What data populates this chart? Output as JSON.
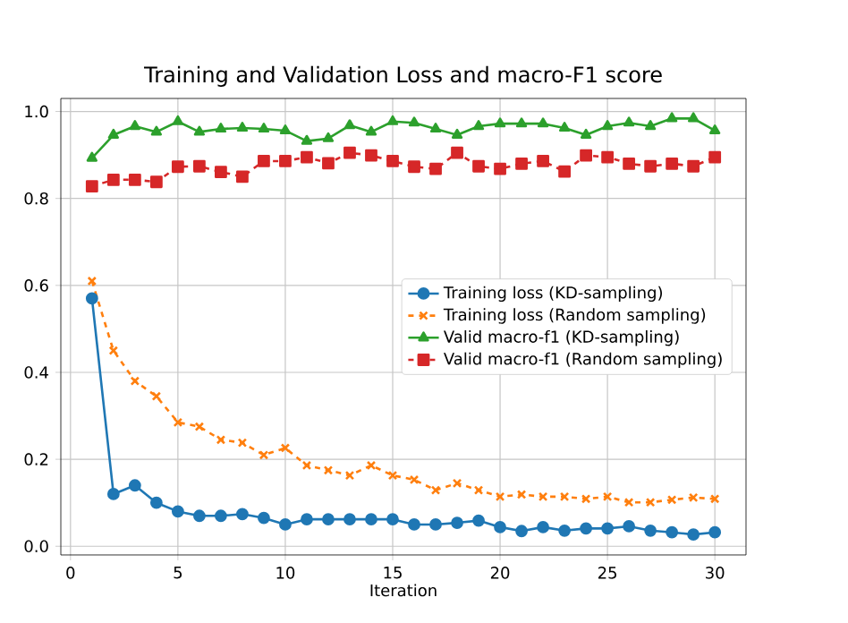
{
  "chart_data": {
    "type": "line",
    "title": "Training and Validation Loss and macro-F1 score",
    "xlabel": "Iteration",
    "x": [
      1,
      2,
      3,
      4,
      5,
      6,
      7,
      8,
      9,
      10,
      11,
      12,
      13,
      14,
      15,
      16,
      17,
      18,
      19,
      20,
      21,
      22,
      23,
      24,
      25,
      26,
      27,
      28,
      29,
      30
    ],
    "series": [
      {
        "name": "Training loss (KD-sampling)",
        "color": "#1f77b4",
        "marker": "circle",
        "line_style": "solid",
        "values": [
          0.57,
          0.12,
          0.14,
          0.1,
          0.08,
          0.07,
          0.07,
          0.074,
          0.065,
          0.05,
          0.062,
          0.062,
          0.062,
          0.062,
          0.062,
          0.05,
          0.05,
          0.054,
          0.059,
          0.044,
          0.035,
          0.044,
          0.036,
          0.041,
          0.041,
          0.046,
          0.036,
          0.032,
          0.027,
          0.032
        ]
      },
      {
        "name": "Training loss (Random sampling)",
        "color": "#ff7f0e",
        "marker": "cross",
        "line_style": "dashed",
        "values": [
          0.61,
          0.45,
          0.38,
          0.345,
          0.285,
          0.275,
          0.245,
          0.238,
          0.21,
          0.226,
          0.186,
          0.175,
          0.163,
          0.186,
          0.163,
          0.153,
          0.129,
          0.145,
          0.129,
          0.114,
          0.119,
          0.114,
          0.114,
          0.109,
          0.114,
          0.101,
          0.101,
          0.107,
          0.112,
          0.109
        ]
      },
      {
        "name": "Valid macro-f1 (KD-sampling)",
        "color": "#2ca02c",
        "marker": "triangle",
        "line_style": "solid",
        "values": [
          0.893,
          0.946,
          0.966,
          0.953,
          0.977,
          0.953,
          0.96,
          0.962,
          0.96,
          0.956,
          0.932,
          0.938,
          0.968,
          0.953,
          0.977,
          0.974,
          0.96,
          0.946,
          0.966,
          0.972,
          0.972,
          0.972,
          0.962,
          0.946,
          0.966,
          0.974,
          0.966,
          0.984,
          0.984,
          0.956
        ]
      },
      {
        "name": "Valid macro-f1 (Random sampling)",
        "color": "#d62728",
        "marker": "square",
        "line_style": "dashed",
        "values": [
          0.828,
          0.843,
          0.843,
          0.838,
          0.873,
          0.874,
          0.861,
          0.85,
          0.886,
          0.886,
          0.895,
          0.881,
          0.905,
          0.899,
          0.886,
          0.873,
          0.868,
          0.905,
          0.874,
          0.868,
          0.88,
          0.886,
          0.862,
          0.899,
          0.895,
          0.88,
          0.874,
          0.88,
          0.874,
          0.895
        ]
      }
    ],
    "xlim": [
      -0.45,
      31.45
    ],
    "ylim": [
      -0.02,
      1.03
    ],
    "xticks": [
      0,
      5,
      10,
      15,
      20,
      25,
      30
    ],
    "yticks": [
      {
        "value": 0.0,
        "label": "0.0"
      },
      {
        "value": 0.2,
        "label": "0.2"
      },
      {
        "value": 0.4,
        "label": "0.4"
      },
      {
        "value": 0.6,
        "label": "0.6"
      },
      {
        "value": 0.8,
        "label": "0.8"
      },
      {
        "value": 1.0,
        "label": "1.0"
      }
    ],
    "grid": true,
    "legend": "right"
  }
}
